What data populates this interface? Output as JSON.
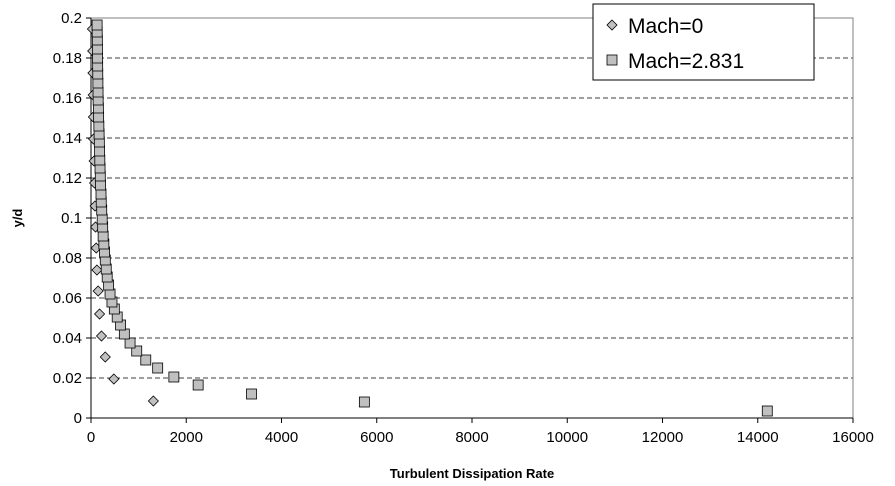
{
  "chart_data": {
    "type": "scatter",
    "title": "",
    "xlabel": "Turbulent Dissipation Rate",
    "ylabel": "y/d",
    "xlim": [
      0,
      16000
    ],
    "ylim": [
      0,
      0.2
    ],
    "xticks": [
      0,
      2000,
      4000,
      6000,
      8000,
      10000,
      12000,
      14000,
      16000
    ],
    "yticks": [
      0,
      0.02,
      0.04,
      0.06,
      0.08,
      0.1,
      0.12,
      0.14,
      0.16,
      0.18,
      0.2
    ],
    "xtick_labels": [
      "0",
      "2000",
      "4000",
      "6000",
      "8000",
      "10000",
      "12000",
      "14000",
      "16000"
    ],
    "ytick_labels": [
      "0",
      "0.02",
      "0.04",
      "0.06",
      "0.08",
      "0.1",
      "0.12",
      "0.14",
      "0.16",
      "0.18",
      "0.2"
    ],
    "grid": "horizontal dashed",
    "legend_position": "top-right",
    "series": [
      {
        "name": "Mach=0",
        "marker": "diamond",
        "color": "#c0c0c0",
        "points": [
          [
            1310,
            0.0085
          ],
          [
            480,
            0.0195
          ],
          [
            300,
            0.0305
          ],
          [
            220,
            0.041
          ],
          [
            180,
            0.052
          ],
          [
            150,
            0.0635
          ],
          [
            125,
            0.074
          ],
          [
            110,
            0.085
          ],
          [
            95,
            0.0955
          ],
          [
            85,
            0.106
          ],
          [
            75,
            0.1175
          ],
          [
            65,
            0.1285
          ],
          [
            55,
            0.1395
          ],
          [
            50,
            0.1505
          ],
          [
            45,
            0.1615
          ],
          [
            40,
            0.1725
          ],
          [
            35,
            0.1835
          ],
          [
            30,
            0.1945
          ]
        ]
      },
      {
        "name": "Mach=2.831",
        "marker": "square",
        "color": "#c0c0c0",
        "points": [
          [
            14200,
            0.0035
          ],
          [
            5740,
            0.008
          ],
          [
            3370,
            0.012
          ],
          [
            2250,
            0.0165
          ],
          [
            1740,
            0.0205
          ],
          [
            1400,
            0.025
          ],
          [
            1150,
            0.029
          ],
          [
            960,
            0.0335
          ],
          [
            820,
            0.0375
          ],
          [
            700,
            0.042
          ],
          [
            620,
            0.0465
          ],
          [
            550,
            0.0505
          ],
          [
            490,
            0.0545
          ],
          [
            440,
            0.058
          ],
          [
            400,
            0.062
          ],
          [
            370,
            0.0665
          ],
          [
            340,
            0.0705
          ],
          [
            320,
            0.0745
          ],
          [
            300,
            0.079
          ],
          [
            285,
            0.083
          ],
          [
            270,
            0.087
          ],
          [
            255,
            0.091
          ],
          [
            245,
            0.0955
          ],
          [
            235,
            0.0995
          ],
          [
            225,
            0.104
          ],
          [
            215,
            0.108
          ],
          [
            210,
            0.112
          ],
          [
            200,
            0.1165
          ],
          [
            195,
            0.121
          ],
          [
            190,
            0.125
          ],
          [
            185,
            0.129
          ],
          [
            180,
            0.1335
          ],
          [
            175,
            0.138
          ],
          [
            170,
            0.142
          ],
          [
            165,
            0.146
          ],
          [
            160,
            0.1505
          ],
          [
            155,
            0.155
          ],
          [
            150,
            0.159
          ],
          [
            148,
            0.163
          ],
          [
            145,
            0.1675
          ],
          [
            142,
            0.172
          ],
          [
            140,
            0.176
          ],
          [
            138,
            0.18
          ],
          [
            135,
            0.1845
          ],
          [
            133,
            0.189
          ],
          [
            130,
            0.193
          ],
          [
            128,
            0.1965
          ]
        ]
      }
    ]
  }
}
